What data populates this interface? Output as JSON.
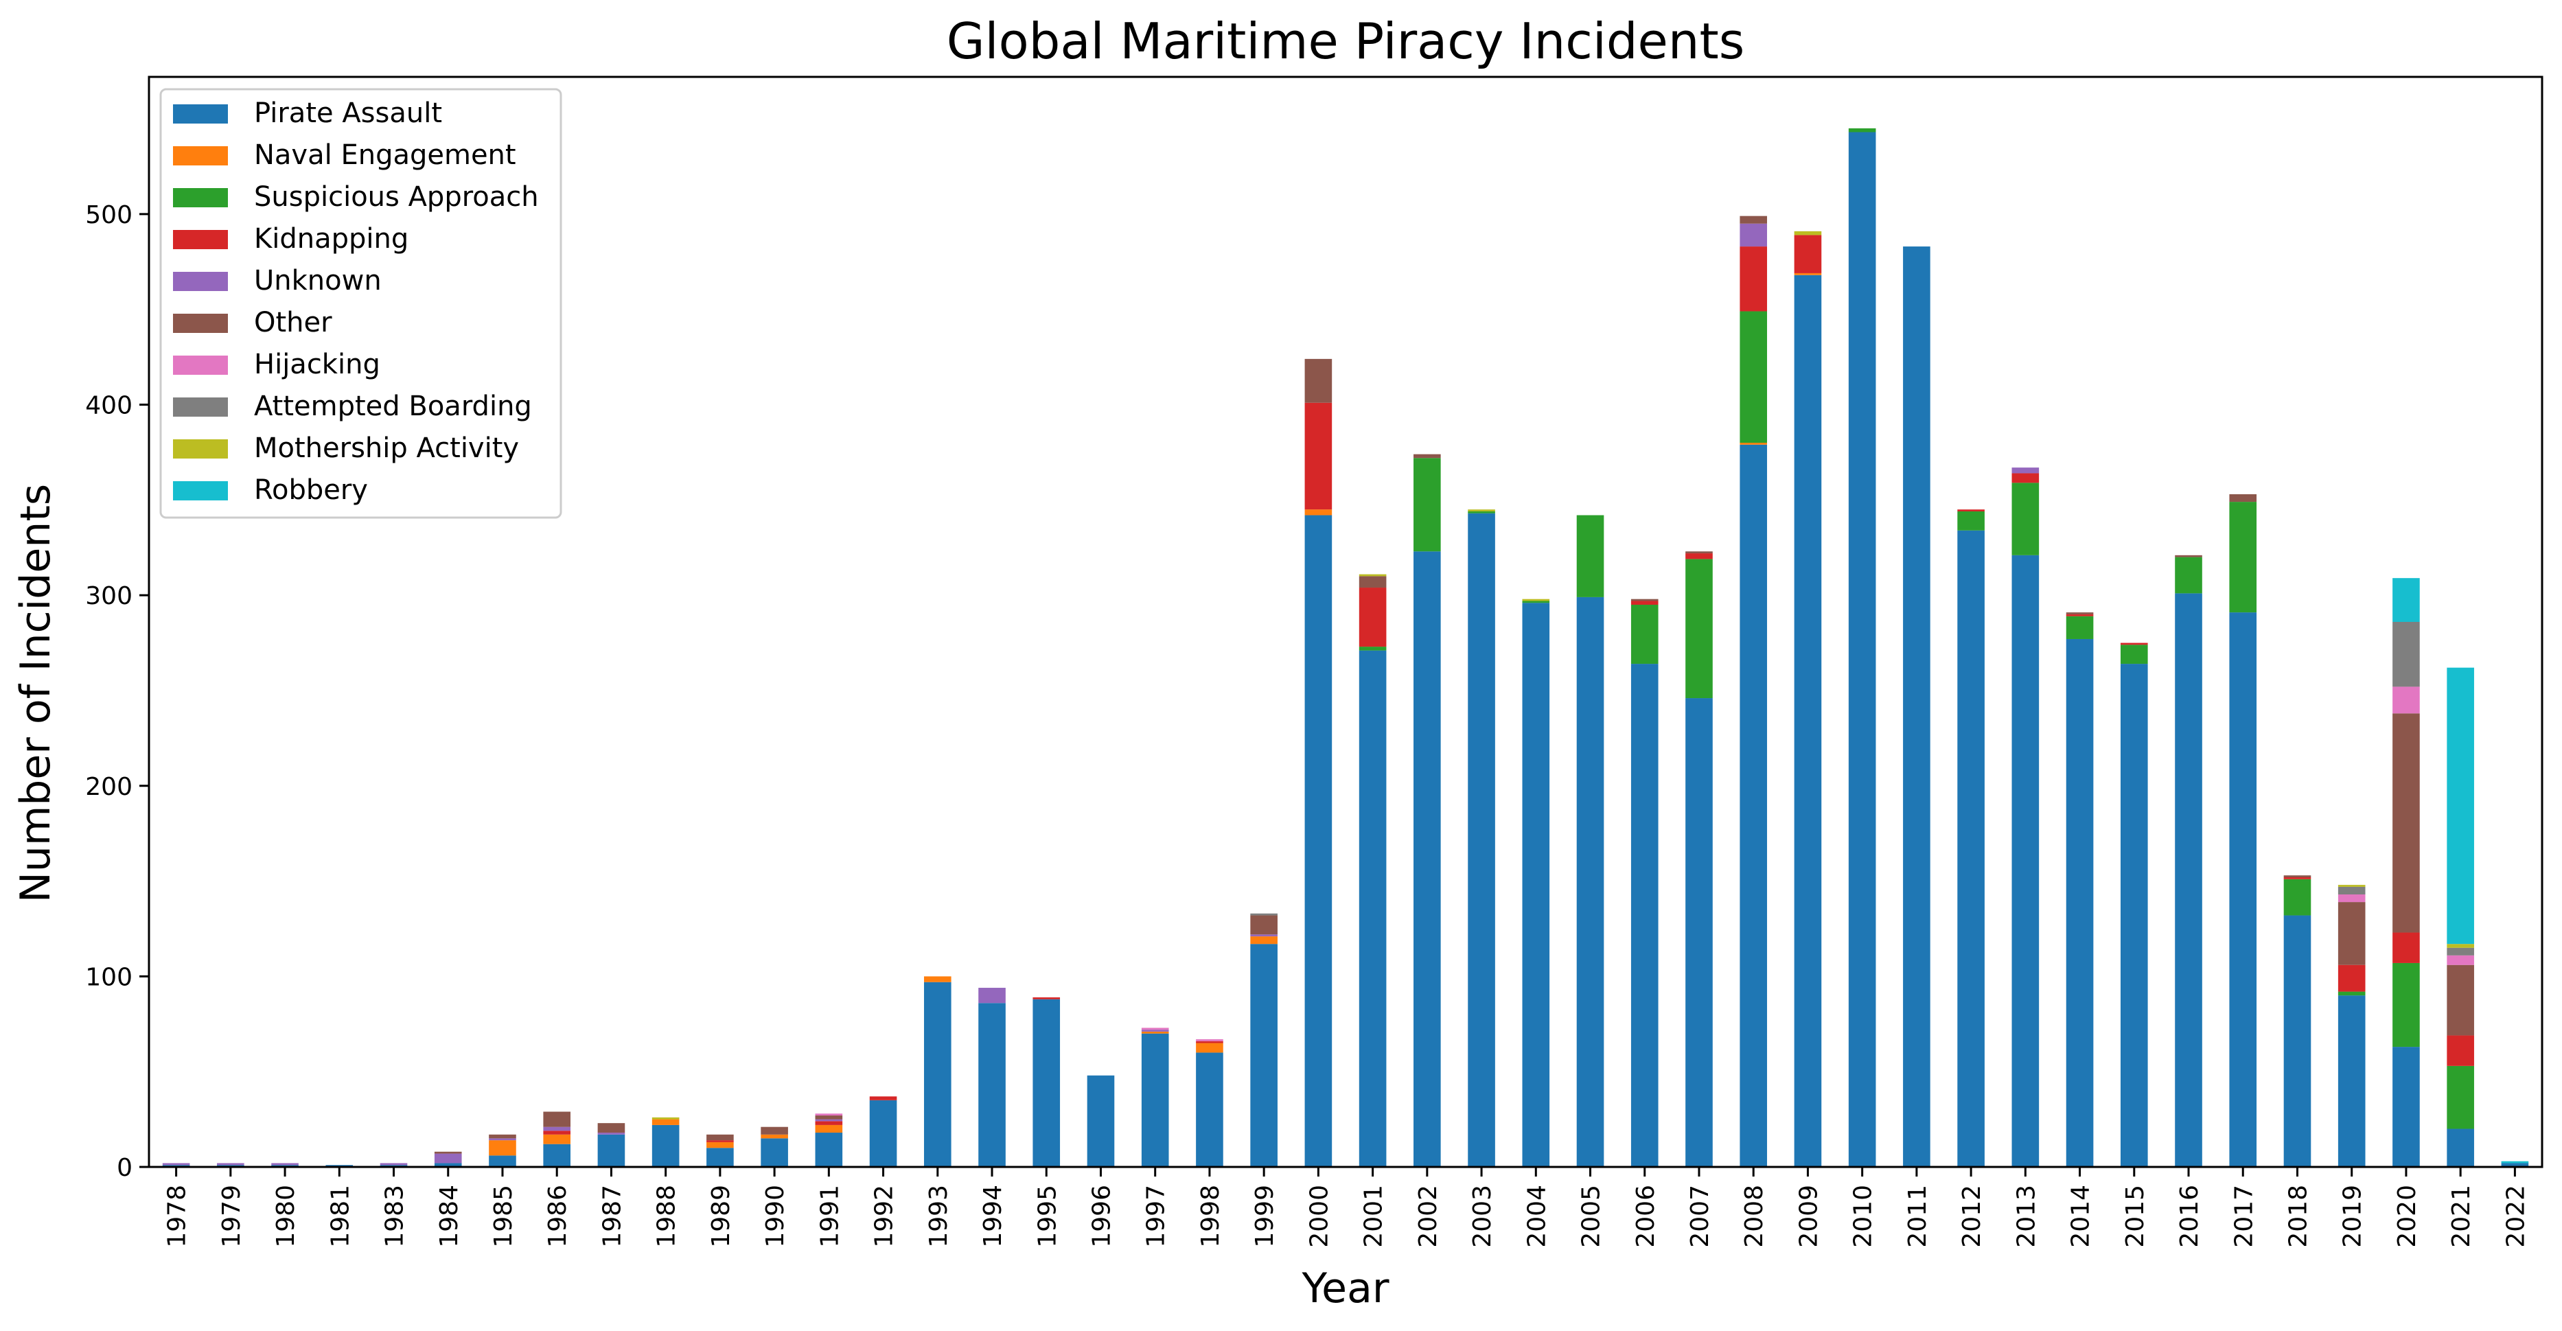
{
  "chart_data": {
    "type": "bar",
    "stacked": true,
    "title": "Global Maritime Piracy Incidents",
    "xlabel": "Year",
    "ylabel": "Number of Incidents",
    "ylim": [
      0,
      572
    ],
    "yticks": [
      0,
      100,
      200,
      300,
      400,
      500
    ],
    "grid": false,
    "legend_position": "top-left",
    "categories": [
      "1978",
      "1979",
      "1980",
      "1981",
      "1983",
      "1984",
      "1985",
      "1986",
      "1987",
      "1988",
      "1989",
      "1990",
      "1991",
      "1992",
      "1993",
      "1994",
      "1995",
      "1996",
      "1997",
      "1998",
      "1999",
      "2000",
      "2001",
      "2002",
      "2003",
      "2004",
      "2005",
      "2006",
      "2007",
      "2008",
      "2009",
      "2010",
      "2011",
      "2012",
      "2013",
      "2014",
      "2015",
      "2016",
      "2017",
      "2018",
      "2019",
      "2020",
      "2021",
      "2022"
    ],
    "series": [
      {
        "name": "Pirate Assault",
        "color": "#1f77b4",
        "values": [
          1,
          1,
          1,
          1,
          1,
          2,
          6,
          12,
          17,
          22,
          10,
          15,
          18,
          35,
          97,
          86,
          88,
          48,
          70,
          60,
          117,
          342,
          271,
          323,
          343,
          296,
          299,
          264,
          246,
          379,
          468,
          543,
          483,
          334,
          321,
          277,
          264,
          301,
          291,
          132,
          90,
          63,
          20,
          2
        ]
      },
      {
        "name": "Naval Engagement",
        "color": "#ff7f0e",
        "values": [
          0,
          0,
          0,
          0,
          0,
          0,
          8,
          5,
          0,
          3,
          3,
          2,
          4,
          0,
          3,
          0,
          0,
          0,
          1,
          5,
          4,
          3,
          0,
          0,
          0,
          0,
          0,
          0,
          0,
          1,
          1,
          0,
          0,
          0,
          0,
          0,
          0,
          0,
          0,
          0,
          0,
          0,
          0,
          0
        ]
      },
      {
        "name": "Suspicious Approach",
        "color": "#2ca02c",
        "values": [
          0,
          0,
          0,
          0,
          0,
          0,
          0,
          0,
          0,
          0,
          0,
          0,
          0,
          0,
          0,
          0,
          0,
          0,
          0,
          0,
          0,
          0,
          2,
          49,
          1,
          1,
          43,
          31,
          73,
          69,
          0,
          2,
          0,
          10,
          38,
          12,
          10,
          19,
          58,
          19,
          2,
          44,
          33,
          0
        ]
      },
      {
        "name": "Kidnapping",
        "color": "#d62728",
        "values": [
          0,
          0,
          0,
          0,
          0,
          0,
          0,
          2,
          0,
          0,
          1,
          0,
          2,
          2,
          0,
          0,
          1,
          0,
          0,
          1,
          0,
          56,
          31,
          0,
          0,
          0,
          0,
          2,
          3,
          34,
          20,
          0,
          0,
          1,
          5,
          1,
          1,
          0,
          0,
          1,
          14,
          16,
          16,
          0
        ]
      },
      {
        "name": "Unknown",
        "color": "#9467bd",
        "values": [
          1,
          1,
          1,
          0,
          1,
          5,
          1,
          2,
          1,
          0,
          0,
          0,
          1,
          0,
          0,
          8,
          0,
          0,
          1,
          0,
          1,
          0,
          0,
          0,
          0,
          0,
          0,
          0,
          0,
          12,
          0,
          0,
          0,
          0,
          3,
          0,
          0,
          0,
          0,
          0,
          0,
          0,
          0,
          0
        ]
      },
      {
        "name": "Other",
        "color": "#8c564b",
        "values": [
          0,
          0,
          0,
          0,
          0,
          1,
          2,
          8,
          5,
          0,
          3,
          4,
          2,
          0,
          0,
          0,
          0,
          0,
          0,
          0,
          10,
          23,
          6,
          2,
          0,
          0,
          0,
          1,
          1,
          4,
          0,
          0,
          0,
          0,
          0,
          1,
          0,
          1,
          4,
          1,
          33,
          115,
          37,
          0
        ]
      },
      {
        "name": "Hijacking",
        "color": "#e377c2",
        "values": [
          0,
          0,
          0,
          0,
          0,
          0,
          0,
          0,
          0,
          0,
          0,
          0,
          1,
          0,
          0,
          0,
          0,
          0,
          1,
          1,
          0,
          0,
          0,
          0,
          0,
          0,
          0,
          0,
          0,
          0,
          0,
          0,
          0,
          0,
          0,
          0,
          0,
          0,
          0,
          0,
          4,
          14,
          5,
          0
        ]
      },
      {
        "name": "Attempted Boarding",
        "color": "#7f7f7f",
        "values": [
          0,
          0,
          0,
          0,
          0,
          0,
          0,
          0,
          0,
          0,
          0,
          0,
          0,
          0,
          0,
          0,
          0,
          0,
          0,
          0,
          1,
          0,
          0,
          0,
          0,
          0,
          0,
          0,
          0,
          0,
          0,
          0,
          0,
          0,
          0,
          0,
          0,
          0,
          0,
          0,
          4,
          34,
          4,
          0
        ]
      },
      {
        "name": "Mothership Activity",
        "color": "#bcbd22",
        "values": [
          0,
          0,
          0,
          0,
          0,
          0,
          0,
          0,
          0,
          1,
          0,
          0,
          0,
          0,
          0,
          0,
          0,
          0,
          0,
          0,
          0,
          0,
          1,
          0,
          1,
          1,
          0,
          0,
          0,
          0,
          2,
          0,
          0,
          0,
          0,
          0,
          0,
          0,
          0,
          0,
          1,
          0,
          2,
          0
        ]
      },
      {
        "name": "Robbery",
        "color": "#17becf",
        "values": [
          0,
          0,
          0,
          0,
          0,
          0,
          0,
          0,
          0,
          0,
          0,
          0,
          0,
          0,
          0,
          0,
          0,
          0,
          0,
          0,
          0,
          0,
          0,
          0,
          0,
          0,
          0,
          0,
          0,
          0,
          0,
          0,
          0,
          0,
          0,
          0,
          0,
          0,
          0,
          0,
          0,
          23,
          145,
          1
        ]
      }
    ]
  }
}
